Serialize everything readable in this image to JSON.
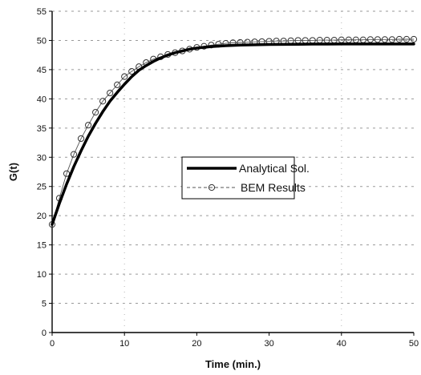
{
  "chart_data": {
    "type": "line",
    "xlabel": "Time (min.)",
    "ylabel": "G(t)",
    "xlim": [
      0,
      50
    ],
    "ylim": [
      0,
      55
    ],
    "x_ticks": [
      0,
      10,
      20,
      30,
      40,
      50
    ],
    "y_ticks": [
      0,
      5,
      10,
      15,
      20,
      25,
      30,
      35,
      40,
      45,
      50,
      55
    ],
    "grid": "horizontal dashed",
    "legend_position": "center-right",
    "series": [
      {
        "name": "Analytical Sol.",
        "style": "thick solid line",
        "color": "#000000",
        "x": [
          0,
          1,
          2,
          3,
          4,
          5,
          6,
          7,
          8,
          9,
          10,
          11,
          12,
          13,
          14,
          15,
          16,
          17,
          18,
          19,
          20,
          22,
          24,
          26,
          28,
          30,
          32,
          34,
          36,
          38,
          40,
          42,
          44,
          46,
          48,
          50
        ],
        "y": [
          18.5,
          22.1,
          25.4,
          28.4,
          31.1,
          33.6,
          35.8,
          37.8,
          39.6,
          41.1,
          42.5,
          43.8,
          44.9,
          45.7,
          46.4,
          47.0,
          47.5,
          47.9,
          48.2,
          48.5,
          48.7,
          48.95,
          49.1,
          49.2,
          49.25,
          49.3,
          49.33,
          49.35,
          49.37,
          49.38,
          49.39,
          49.4,
          49.4,
          49.4,
          49.4,
          49.4
        ]
      },
      {
        "name": "BEM Results",
        "style": "thin line with open circle markers",
        "color": "#333333",
        "x": [
          0,
          1,
          2,
          3,
          4,
          5,
          6,
          7,
          8,
          9,
          10,
          11,
          12,
          13,
          14,
          15,
          16,
          17,
          18,
          19,
          20,
          21,
          22,
          23,
          24,
          25,
          26,
          27,
          28,
          29,
          30,
          31,
          32,
          33,
          34,
          35,
          36,
          37,
          38,
          39,
          40,
          41,
          42,
          43,
          44,
          45,
          46,
          47,
          48,
          49,
          50
        ],
        "y": [
          18.5,
          23.0,
          27.2,
          30.5,
          33.2,
          35.5,
          37.7,
          39.6,
          41.0,
          42.4,
          43.8,
          44.7,
          45.5,
          46.2,
          46.8,
          47.2,
          47.6,
          47.9,
          48.2,
          48.5,
          48.8,
          49.0,
          49.2,
          49.35,
          49.5,
          49.6,
          49.65,
          49.7,
          49.75,
          49.8,
          49.85,
          49.9,
          49.9,
          49.95,
          50.0,
          50.0,
          50.0,
          50.05,
          50.05,
          50.05,
          50.1,
          50.1,
          50.1,
          50.1,
          50.15,
          50.15,
          50.15,
          50.15,
          50.2,
          50.2,
          50.2
        ]
      }
    ]
  }
}
